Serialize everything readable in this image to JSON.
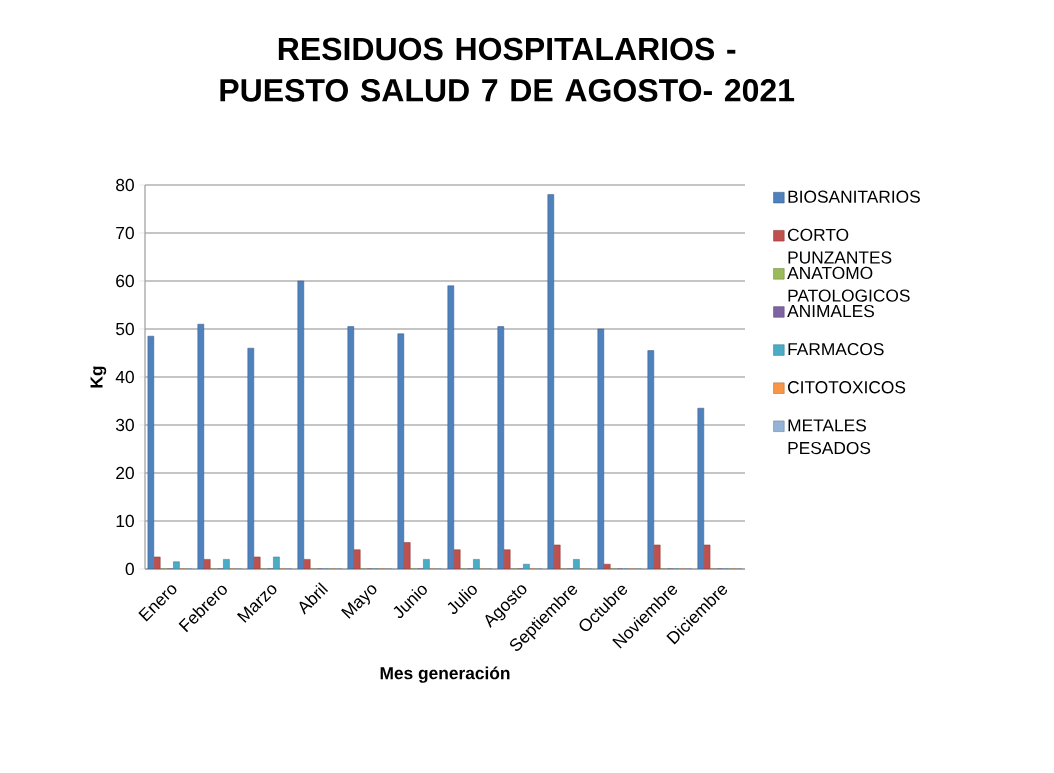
{
  "chart_data": {
    "type": "bar",
    "title": "RESIDUOS HOSPITALARIOS - PUESTO SALUD 7 DE AGOSTO- 2021",
    "xlabel": "Mes generación",
    "ylabel": "Kg",
    "categories": [
      "Enero",
      "Febrero",
      "Marzo",
      "Abril",
      "Mayo",
      "Junio",
      "Julio",
      "Agosto",
      "Septiembre",
      "Octubre",
      "Noviembre",
      "Diciembre"
    ],
    "series": [
      {
        "name": "BIOSANITARIOS",
        "color": "#4f81bd",
        "values": [
          48.5,
          51,
          46,
          60,
          50.5,
          49,
          59,
          50.5,
          78,
          50,
          45.5,
          33.5
        ]
      },
      {
        "name": "CORTO PUNZANTES",
        "color": "#c0504d",
        "values": [
          2.5,
          2,
          2.5,
          2,
          4,
          5.5,
          4,
          4,
          5,
          1,
          5,
          5
        ]
      },
      {
        "name": "ANATOMO PATOLOGICOS",
        "color": "#9bbb59",
        "values": [
          0,
          0,
          0,
          0,
          0,
          0,
          0,
          0,
          0,
          0,
          0,
          0
        ]
      },
      {
        "name": "ANIMALES",
        "color": "#8064a2",
        "values": [
          0,
          0,
          0,
          0,
          0,
          0,
          0,
          0,
          0,
          0,
          0,
          0
        ]
      },
      {
        "name": "FARMACOS",
        "color": "#4bacc6",
        "values": [
          1.5,
          2,
          2.5,
          0,
          0,
          2,
          2,
          1,
          2,
          0,
          0,
          0
        ]
      },
      {
        "name": "CITOTOXICOS",
        "color": "#f79646",
        "values": [
          0,
          0,
          0,
          0,
          0,
          0,
          0,
          0,
          0,
          0,
          0,
          0
        ]
      },
      {
        "name": "METALES PESADOS",
        "color": "#95b3d7",
        "values": [
          0,
          0,
          0,
          0,
          0,
          0,
          0,
          0,
          0,
          0,
          0,
          0
        ]
      }
    ],
    "ylim": [
      0,
      80
    ],
    "yticks": [
      0,
      10,
      20,
      30,
      40,
      50,
      60,
      70,
      80
    ],
    "grid": "y",
    "legend": "right"
  }
}
